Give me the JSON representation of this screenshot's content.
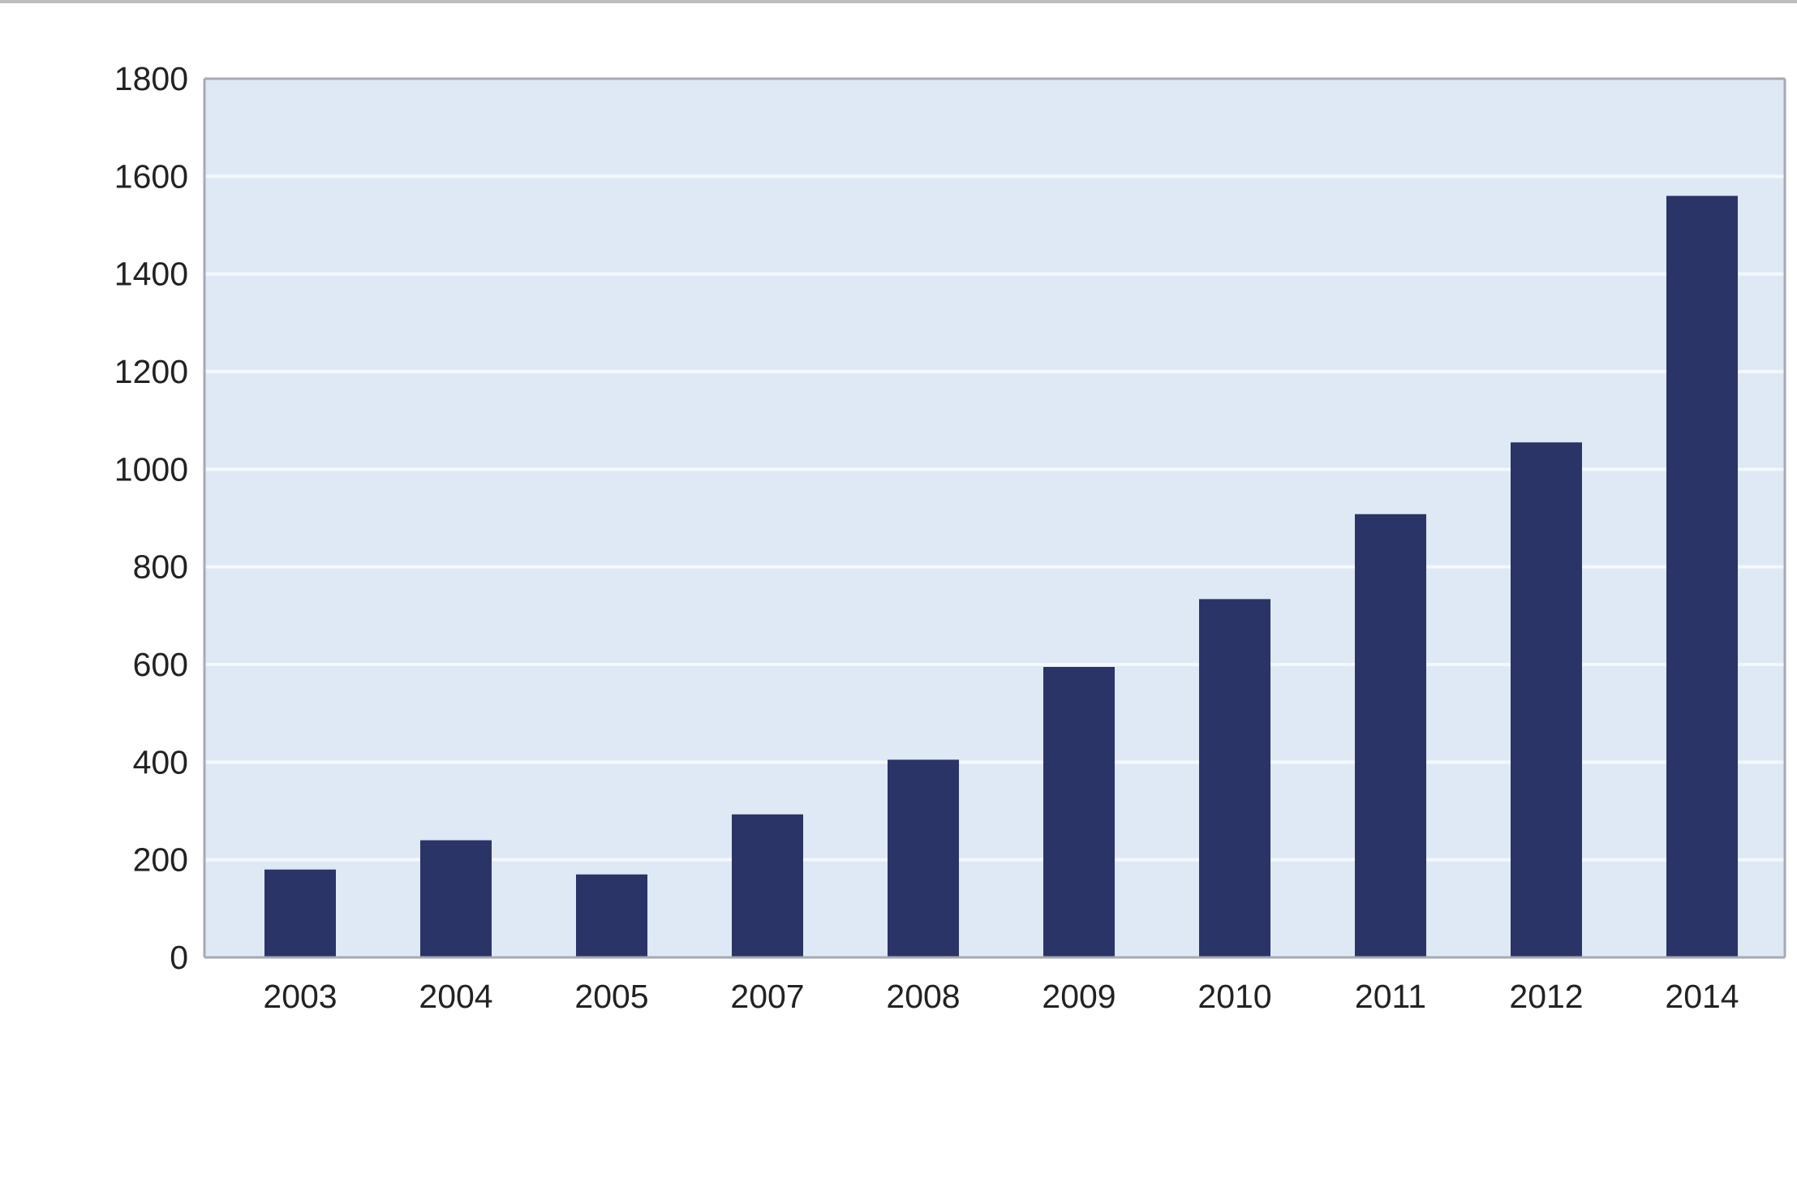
{
  "chart_data": {
    "type": "bar",
    "title": "",
    "xlabel": "",
    "ylabel": "",
    "categories": [
      "2003",
      "2004",
      "2005",
      "2007",
      "2008",
      "2009",
      "2010",
      "2011",
      "2012",
      "2014"
    ],
    "values": [
      180,
      240,
      170,
      293,
      405,
      595,
      734,
      908,
      1055,
      1560
    ],
    "ylim": [
      0,
      1800
    ],
    "yticks": [
      "0",
      "200",
      "400",
      "600",
      "800",
      "1000",
      "1200",
      "1400",
      "1600",
      "1800"
    ],
    "grid": true,
    "legend": "none",
    "colors": {
      "bar": "#2b3467",
      "plot_background": "#dfe9f5",
      "gridline": "#f4f8fc",
      "axis": "#a6aab2"
    }
  }
}
